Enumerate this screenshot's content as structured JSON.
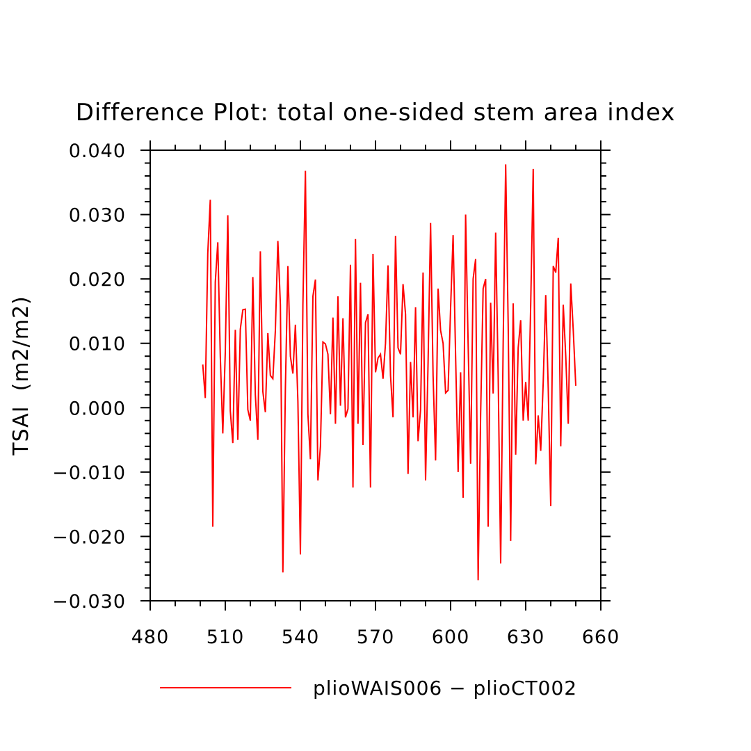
{
  "chart_data": {
    "type": "line",
    "title": "Difference Plot: total one-sided stem area index",
    "xlabel": "",
    "ylabel": "TSAI  (m2/m2)",
    "xlim": [
      480,
      660
    ],
    "ylim": [
      -0.03,
      0.04
    ],
    "x_ticks": [
      "480",
      "510",
      "540",
      "570",
      "600",
      "630",
      "660"
    ],
    "y_ticks": [
      "−0.030",
      "−0.020",
      "−0.010",
      "0.000",
      "0.010",
      "0.020",
      "0.030",
      "0.040"
    ],
    "grid": false,
    "legend_position": "bottom",
    "series": [
      {
        "name": "plioWAIS006 − plioCT002",
        "color": "#ff0000",
        "x_start": 501,
        "x_step": 1,
        "values": [
          0.0067,
          0.0015,
          0.024,
          0.0323,
          -0.0185,
          0.0195,
          0.0257,
          0.008,
          -0.004,
          0.0087,
          0.0299,
          -0.0005,
          -0.0055,
          0.0121,
          -0.005,
          0.0122,
          0.0152,
          0.0153,
          -0.0003,
          -0.002,
          0.0203,
          0.002,
          -0.005,
          0.0243,
          0.0025,
          -0.0007,
          0.0116,
          0.005,
          0.0045,
          0.012,
          0.0259,
          0.016,
          -0.0256,
          0.003,
          0.022,
          0.008,
          0.0053,
          0.0129,
          0.001,
          -0.0228,
          0.016,
          0.0368,
          -0.001,
          -0.008,
          0.0173,
          0.0199,
          -0.0113,
          -0.006,
          0.0102,
          0.0099,
          0.0083,
          -0.001,
          0.014,
          -0.0025,
          0.0173,
          0.0003,
          0.0139,
          -0.0015,
          -0.0002,
          0.0222,
          -0.0124,
          0.0262,
          -0.0025,
          0.0194,
          -0.0058,
          0.0132,
          0.0145,
          -0.0124,
          0.0239,
          0.0055,
          0.0077,
          0.0083,
          0.0045,
          0.01,
          0.0221,
          0.005,
          -0.0015,
          0.0267,
          0.0093,
          0.0083,
          0.0192,
          0.0145,
          -0.0103,
          0.0071,
          -0.0015,
          0.0156,
          -0.0052,
          -0.0003,
          0.021,
          -0.0113,
          0.007,
          0.0287,
          0.005,
          -0.0082,
          0.0185,
          0.012,
          0.01,
          0.0023,
          0.0027,
          0.0155,
          0.0268,
          0.008,
          -0.01,
          0.0055,
          -0.014,
          0.03,
          0.01,
          -0.0087,
          0.02,
          0.0231,
          -0.0268,
          -0.001,
          0.0185,
          0.02,
          -0.0185,
          0.0163,
          0.0022,
          0.0272,
          0.005,
          -0.0242,
          0.01,
          0.0378,
          0.013,
          -0.0207,
          0.0162,
          -0.0073,
          0.0093,
          0.0136,
          -0.002,
          0.004,
          -0.002,
          0.016,
          0.0371,
          -0.0088,
          -0.0012,
          -0.0067,
          0.004,
          0.0175,
          0.003,
          -0.0153,
          0.022,
          0.021,
          0.0264,
          -0.006,
          0.016,
          0.008,
          -0.0025,
          0.0193,
          0.012,
          0.0034
        ]
      }
    ]
  }
}
